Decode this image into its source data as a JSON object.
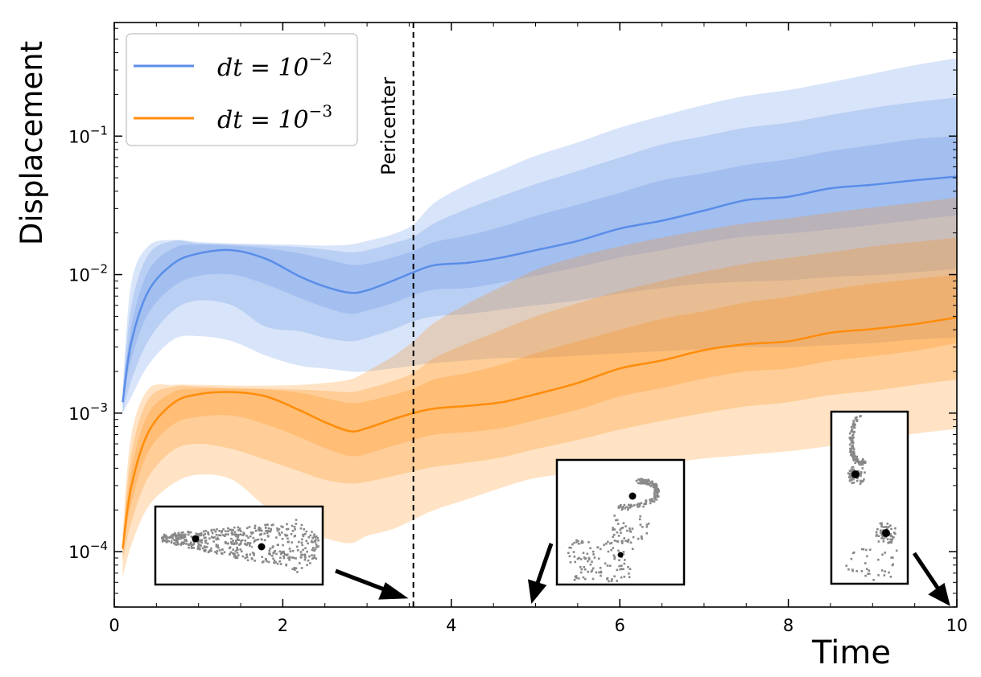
{
  "chart_data": {
    "type": "area",
    "xlabel": "Time",
    "ylabel": "Displacement",
    "xlim": [
      0,
      10
    ],
    "ylim_log10": [
      -4.4,
      -0.18
    ],
    "yscale": "log",
    "x_ticks": [
      "0",
      "2",
      "4",
      "6",
      "8",
      "10"
    ],
    "y_ticks": [
      {
        "base": "10",
        "exp": "−1",
        "value": 0.1
      },
      {
        "base": "10",
        "exp": "−2",
        "value": 0.01
      },
      {
        "base": "10",
        "exp": "−3",
        "value": 0.001
      },
      {
        "base": "10",
        "exp": "−4",
        "value": 0.0001
      }
    ],
    "legend_position": "top-left",
    "x": [
      0.1,
      0.2,
      0.4,
      0.7,
      1.0,
      1.4,
      1.8,
      2.2,
      2.5,
      2.8,
      3.0,
      3.3,
      3.55,
      3.8,
      4.2,
      4.6,
      5.0,
      5.5,
      6.0,
      6.5,
      7.0,
      7.5,
      8.0,
      8.5,
      9.0,
      9.5,
      10.0
    ],
    "series": [
      {
        "legend_label": "dt = 10",
        "legend_exponent": "−2",
        "color": "#5a8de8",
        "median": [
          0.0012,
          0.0032,
          0.0075,
          0.012,
          0.0142,
          0.015,
          0.013,
          0.0097,
          0.0082,
          0.0074,
          0.0077,
          0.009,
          0.0104,
          0.0117,
          0.0122,
          0.0133,
          0.015,
          0.0175,
          0.0215,
          0.0245,
          0.029,
          0.0345,
          0.0365,
          0.042,
          0.0445,
          0.048,
          0.051
        ],
        "band1_low": [
          0.0011,
          0.0024,
          0.0052,
          0.0082,
          0.0098,
          0.01,
          0.0085,
          0.0068,
          0.0058,
          0.0052,
          0.0055,
          0.0062,
          0.0071,
          0.0078,
          0.008,
          0.0088,
          0.0098,
          0.0113,
          0.0133,
          0.015,
          0.017,
          0.0188,
          0.0198,
          0.0212,
          0.0228,
          0.0248,
          0.0268
        ],
        "band1_high": [
          0.0013,
          0.0042,
          0.0105,
          0.0155,
          0.0165,
          0.0162,
          0.0155,
          0.0142,
          0.013,
          0.0118,
          0.012,
          0.0133,
          0.0148,
          0.0172,
          0.0192,
          0.0222,
          0.0265,
          0.032,
          0.039,
          0.048,
          0.054,
          0.062,
          0.068,
          0.078,
          0.086,
          0.095,
          0.1
        ],
        "band2_low": [
          0.001,
          0.0017,
          0.0033,
          0.0055,
          0.0065,
          0.006,
          0.0042,
          0.0039,
          0.0035,
          0.0033,
          0.0035,
          0.004,
          0.0046,
          0.005,
          0.0052,
          0.0056,
          0.006,
          0.0065,
          0.0073,
          0.008,
          0.0086,
          0.0089,
          0.0091,
          0.0096,
          0.0099,
          0.0104,
          0.011
        ],
        "band2_high": [
          0.0014,
          0.0058,
          0.0138,
          0.0175,
          0.0168,
          0.0165,
          0.0162,
          0.0158,
          0.0152,
          0.0145,
          0.015,
          0.0168,
          0.0188,
          0.0235,
          0.03,
          0.037,
          0.045,
          0.056,
          0.07,
          0.087,
          0.1,
          0.115,
          0.125,
          0.142,
          0.16,
          0.176,
          0.19
        ],
        "band3_low": [
          0.001,
          0.0013,
          0.0022,
          0.0034,
          0.0036,
          0.0033,
          0.0026,
          0.0022,
          0.0021,
          0.002,
          0.002,
          0.0021,
          0.0022,
          0.0023,
          0.0024,
          0.0025,
          0.0025,
          0.0026,
          0.0027,
          0.0028,
          0.0029,
          0.003,
          0.003,
          0.0031,
          0.0032,
          0.0034,
          0.0035
        ],
        "band3_high": [
          0.0015,
          0.0085,
          0.016,
          0.0178,
          0.0172,
          0.0168,
          0.0166,
          0.0164,
          0.0162,
          0.0165,
          0.0175,
          0.0195,
          0.023,
          0.033,
          0.045,
          0.057,
          0.072,
          0.09,
          0.115,
          0.14,
          0.168,
          0.195,
          0.215,
          0.245,
          0.282,
          0.325,
          0.365
        ]
      },
      {
        "legend_label": "dt = 10",
        "legend_exponent": "−3",
        "color": "#ff8c0a",
        "median": [
          0.000105,
          0.00029,
          0.00072,
          0.00118,
          0.00137,
          0.00142,
          0.00132,
          0.00105,
          0.00086,
          0.00074,
          0.00078,
          0.0009,
          0.001,
          0.00108,
          0.00113,
          0.0012,
          0.00137,
          0.00165,
          0.0021,
          0.0024,
          0.00285,
          0.00315,
          0.0033,
          0.0038,
          0.00405,
          0.0044,
          0.0049
        ],
        "band1_low": [
          9.5e-05,
          0.00022,
          0.00052,
          0.00083,
          0.00094,
          0.00096,
          0.00083,
          0.00067,
          0.00056,
          0.00049,
          0.00051,
          0.00058,
          0.00064,
          0.0007,
          0.00073,
          0.00078,
          0.00089,
          0.00106,
          0.00132,
          0.00152,
          0.00178,
          0.002,
          0.0021,
          0.00238,
          0.00258,
          0.00282,
          0.0032
        ],
        "band1_high": [
          0.000115,
          0.00038,
          0.00098,
          0.00142,
          0.0015,
          0.0015,
          0.00148,
          0.0014,
          0.00128,
          0.00118,
          0.00122,
          0.00135,
          0.0015,
          0.00175,
          0.00195,
          0.00225,
          0.0027,
          0.0033,
          0.004,
          0.0048,
          0.00545,
          0.0063,
          0.0069,
          0.0078,
          0.0086,
          0.0093,
          0.01
        ],
        "band2_low": [
          8.5e-05,
          0.00016,
          0.00034,
          0.00054,
          0.0006,
          0.00055,
          0.00046,
          0.00038,
          0.00033,
          0.00031,
          0.00032,
          0.00035,
          0.00038,
          0.00041,
          0.00044,
          0.00048,
          0.00055,
          0.00064,
          0.00076,
          0.00088,
          0.001,
          0.00112,
          0.0012,
          0.00135,
          0.00145,
          0.0016,
          0.00175
        ],
        "band2_high": [
          0.000125,
          0.0005,
          0.00125,
          0.00155,
          0.00155,
          0.00152,
          0.0015,
          0.00148,
          0.00145,
          0.00142,
          0.0015,
          0.0017,
          0.00195,
          0.0025,
          0.0032,
          0.004,
          0.005,
          0.0062,
          0.0076,
          0.009,
          0.0105,
          0.012,
          0.0132,
          0.0145,
          0.016,
          0.0172,
          0.0185
        ],
        "band3_low": [
          6.5e-05,
          0.00011,
          0.00021,
          0.00031,
          0.00036,
          0.00033,
          0.00021,
          0.000145,
          0.000125,
          0.000115,
          0.00013,
          0.000145,
          0.00017,
          0.0002,
          0.00024,
          0.00029,
          0.00034,
          0.00037,
          0.0004,
          0.00043,
          0.00047,
          0.0005,
          0.00053,
          0.00058,
          0.00064,
          0.00071,
          0.00077
        ],
        "band3_high": [
          0.00014,
          0.00068,
          0.00148,
          0.0016,
          0.0016,
          0.00158,
          0.00158,
          0.0016,
          0.00165,
          0.00175,
          0.002,
          0.00255,
          0.0033,
          0.0045,
          0.0062,
          0.0082,
          0.0108,
          0.0135,
          0.016,
          0.0185,
          0.021,
          0.0235,
          0.0255,
          0.028,
          0.0305,
          0.033,
          0.036
        ]
      }
    ],
    "annotations": {
      "vline_x": 3.55,
      "vline_label": "Pericenter",
      "insets": [
        {
          "name": "inset-1",
          "time": 3.5
        },
        {
          "name": "inset-2",
          "time": 5.0
        },
        {
          "name": "inset-3",
          "time": 10.0
        }
      ]
    }
  }
}
